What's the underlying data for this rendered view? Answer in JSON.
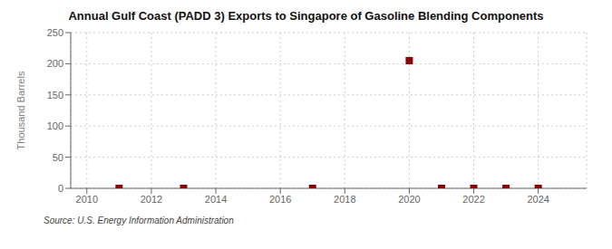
{
  "chart_data": {
    "type": "scatter",
    "title": "Annual Gulf Coast (PADD 3) Exports to Singapore of Gasoline Blending Components",
    "ylabel": "Thousand Barrels",
    "annotations": [
      "Source: U.S. Energy Information Administration"
    ],
    "x": [
      2011,
      2013,
      2017,
      2020,
      2021,
      2022,
      2023,
      2024
    ],
    "values": [
      0,
      0,
      0,
      205,
      0,
      0,
      0,
      0
    ],
    "color": "#8B0000",
    "marker": "square",
    "xlim": [
      2009.5,
      2025.5
    ],
    "ylim": [
      0,
      250
    ],
    "xticks": [
      2010,
      2012,
      2014,
      2016,
      2018,
      2020,
      2022,
      2024
    ],
    "yticks": [
      0,
      50,
      100,
      150,
      200,
      250
    ],
    "grid": true
  }
}
